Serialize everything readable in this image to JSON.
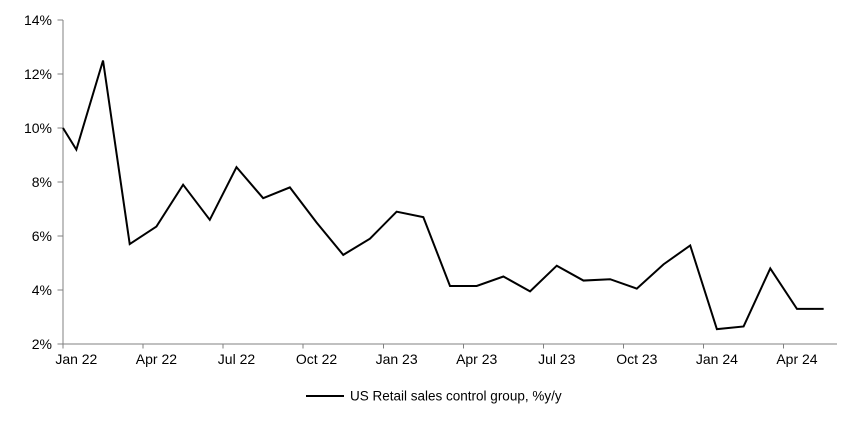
{
  "chart": {
    "legend_label": "US Retail sales control group, %y/y",
    "colors": {
      "series_line": "#000000",
      "axis_line": "#808080",
      "tick_mark": "#808080",
      "text": "#000000",
      "background": "#ffffff"
    }
  },
  "chart_data": {
    "type": "line",
    "title": "",
    "xlabel": "",
    "ylabel": "",
    "ylim": [
      2,
      14
    ],
    "y_ticks": [
      14,
      12,
      10,
      8,
      6,
      4,
      2
    ],
    "y_tick_suffix": "%",
    "x_tick_labels": [
      "Jan 22",
      "Apr 22",
      "Jul 22",
      "Oct 22",
      "Jan 23",
      "Apr 23",
      "Jul 23",
      "Oct 23",
      "Jan 24",
      "Apr 24"
    ],
    "x_tick_interval_months": 3,
    "grid": false,
    "legend_position": "bottom-center",
    "axis_edge_start_value": 10.0,
    "series": [
      {
        "name": "US Retail sales control group, %y/y",
        "months": [
          "Jan 22",
          "Feb 22",
          "Mar 22",
          "Apr 22",
          "May 22",
          "Jun 22",
          "Jul 22",
          "Aug 22",
          "Sep 22",
          "Oct 22",
          "Nov 22",
          "Dec 22",
          "Jan 23",
          "Feb 23",
          "Mar 23",
          "Apr 23",
          "May 23",
          "Jun 23",
          "Jul 23",
          "Aug 23",
          "Sep 23",
          "Oct 23",
          "Nov 23",
          "Dec 23",
          "Jan 24",
          "Feb 24",
          "Mar 24",
          "Apr 24",
          "May 24"
        ],
        "values": [
          9.2,
          12.5,
          5.7,
          6.35,
          7.9,
          6.6,
          8.55,
          7.4,
          7.8,
          6.5,
          5.3,
          5.9,
          6.9,
          6.7,
          4.15,
          4.15,
          4.5,
          3.95,
          4.9,
          4.35,
          4.4,
          4.05,
          4.95,
          5.65,
          2.55,
          2.65,
          4.8,
          3.3,
          3.3
        ]
      }
    ]
  }
}
